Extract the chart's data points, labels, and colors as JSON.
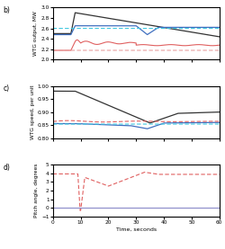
{
  "subplots": [
    {
      "label": "b)",
      "ylabel": "WTG output, MW",
      "ylim": [
        2.0,
        3.0
      ],
      "yticks": [
        2.0,
        2.2,
        2.4,
        2.6,
        2.8,
        3.0
      ],
      "xlim": [
        0,
        60
      ],
      "xticks": [
        0,
        10,
        20,
        30,
        40,
        50,
        60
      ]
    },
    {
      "label": "c)",
      "ylabel": "WTG speed, per unit",
      "ylim": [
        0.8,
        1.0
      ],
      "yticks": [
        0.8,
        0.85,
        0.9,
        0.95,
        1.0
      ],
      "xlim": [
        0,
        60
      ],
      "xticks": [
        0,
        10,
        20,
        30,
        40,
        50,
        60
      ]
    },
    {
      "label": "d)",
      "ylabel": "Pitch angle, degrees",
      "ylim": [
        -1,
        5
      ],
      "yticks": [
        -1,
        0,
        1,
        2,
        3,
        4,
        5
      ],
      "xlim": [
        0,
        60
      ],
      "xticks": [
        0,
        10,
        20,
        30,
        40,
        50,
        60
      ],
      "xlabel": "Time, seconds"
    }
  ],
  "colors": {
    "black": "#333333",
    "blue": "#4070c0",
    "cyan": "#40c8e0",
    "red": "#e06060",
    "pink": "#e8a0a0",
    "lavender": "#9090cc"
  }
}
